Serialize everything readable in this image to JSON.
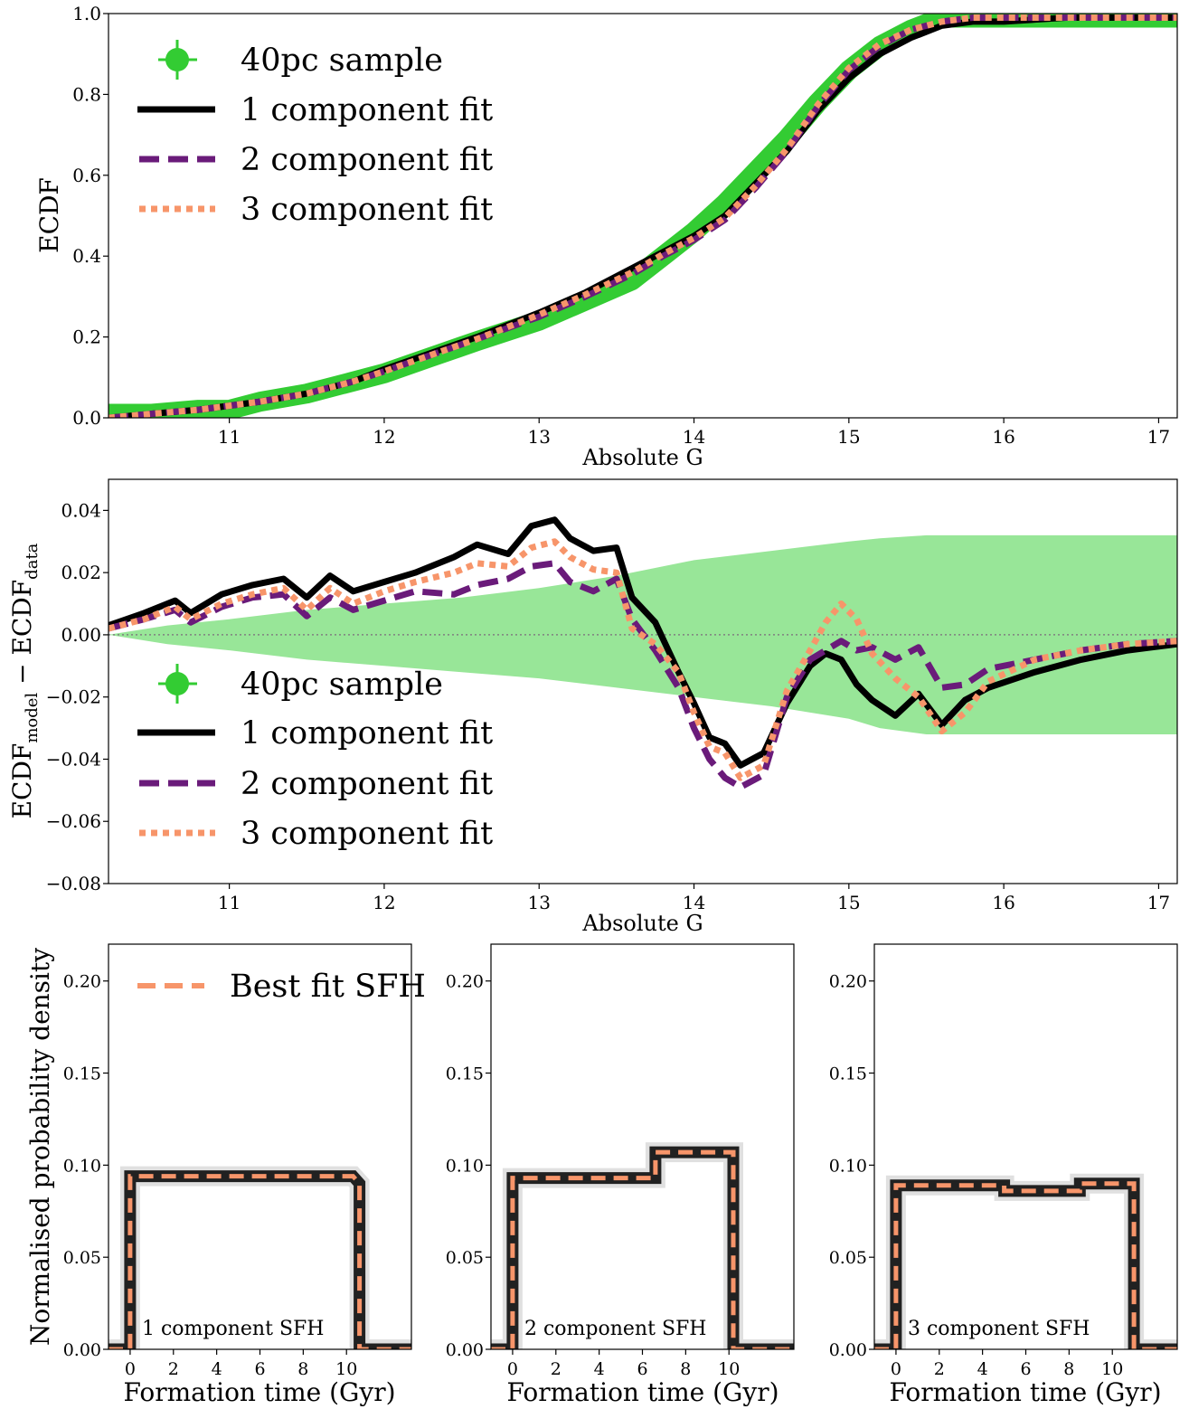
{
  "colors": {
    "sample": "#33cc33",
    "band": "#98e698",
    "fit1": "#000000",
    "fit2": "#6a1b7a",
    "fit3": "#f7956a",
    "zero": "#808080"
  },
  "legend": {
    "sample": "40pc sample",
    "fit1": "1 component fit",
    "fit2": "2 component fit",
    "fit3": "3 component fit",
    "bestfit": "Best fit SFH"
  },
  "chart_data": [
    {
      "id": "ecdf",
      "type": "line",
      "xlabel": "Absolute G",
      "ylabel": "ECDF",
      "xlim": [
        10.22,
        17.12
      ],
      "ylim": [
        0.0,
        1.0
      ],
      "xticks": [
        11,
        12,
        13,
        14,
        15,
        16,
        17
      ],
      "yticks": [
        0.0,
        0.2,
        0.4,
        0.6,
        0.8,
        1.0
      ],
      "ytick_labels": [
        "0.0",
        "0.2",
        "0.4",
        "0.6",
        "0.8",
        "1.0"
      ],
      "legend_position": "upper-left",
      "series": [
        {
          "key": "sample",
          "style": "errorbar-markers",
          "x": [
            10.22,
            10.5,
            10.8,
            11.0,
            11.2,
            11.5,
            11.8,
            12.0,
            12.3,
            12.6,
            13.0,
            13.3,
            13.6,
            13.8,
            14.0,
            14.2,
            14.4,
            14.6,
            14.8,
            15.0,
            15.2,
            15.4,
            15.6,
            15.8,
            16.0,
            16.4,
            16.8,
            17.12
          ],
          "y": [
            0.01,
            0.01,
            0.02,
            0.02,
            0.04,
            0.06,
            0.09,
            0.11,
            0.15,
            0.19,
            0.24,
            0.29,
            0.34,
            0.4,
            0.46,
            0.53,
            0.61,
            0.69,
            0.78,
            0.86,
            0.92,
            0.96,
            0.99,
            0.99,
            0.99,
            0.99,
            0.99,
            0.99
          ]
        },
        {
          "key": "fit1",
          "style": "solid",
          "x": [
            10.22,
            10.5,
            10.8,
            11.0,
            11.2,
            11.5,
            11.8,
            12.0,
            12.3,
            12.6,
            13.0,
            13.3,
            13.6,
            13.8,
            14.0,
            14.2,
            14.4,
            14.6,
            14.8,
            15.0,
            15.2,
            15.4,
            15.6,
            15.8,
            16.0,
            16.4,
            16.8,
            17.12
          ],
          "y": [
            0.0,
            0.01,
            0.02,
            0.03,
            0.04,
            0.06,
            0.09,
            0.12,
            0.16,
            0.2,
            0.26,
            0.31,
            0.37,
            0.41,
            0.45,
            0.5,
            0.58,
            0.66,
            0.76,
            0.84,
            0.9,
            0.94,
            0.97,
            0.98,
            0.98,
            0.99,
            0.99,
            0.99
          ]
        },
        {
          "key": "fit2",
          "style": "dashed",
          "x": [
            10.22,
            10.5,
            10.8,
            11.0,
            11.2,
            11.5,
            11.8,
            12.0,
            12.3,
            12.6,
            13.0,
            13.3,
            13.6,
            13.8,
            14.0,
            14.2,
            14.4,
            14.6,
            14.8,
            15.0,
            15.2,
            15.4,
            15.6,
            15.8,
            16.0,
            16.4,
            16.8,
            17.12
          ],
          "y": [
            0.0,
            0.01,
            0.02,
            0.03,
            0.04,
            0.06,
            0.09,
            0.115,
            0.155,
            0.195,
            0.25,
            0.3,
            0.355,
            0.4,
            0.44,
            0.49,
            0.57,
            0.66,
            0.77,
            0.86,
            0.92,
            0.96,
            0.98,
            0.99,
            0.99,
            0.99,
            0.99,
            0.99
          ]
        },
        {
          "key": "fit3",
          "style": "dotted",
          "x": [
            10.22,
            10.5,
            10.8,
            11.0,
            11.2,
            11.5,
            11.8,
            12.0,
            12.3,
            12.6,
            13.0,
            13.3,
            13.6,
            13.8,
            14.0,
            14.2,
            14.4,
            14.6,
            14.8,
            15.0,
            15.2,
            15.4,
            15.6,
            15.8,
            16.0,
            16.4,
            16.8,
            17.12
          ],
          "y": [
            0.0,
            0.01,
            0.02,
            0.03,
            0.04,
            0.06,
            0.09,
            0.115,
            0.155,
            0.195,
            0.255,
            0.305,
            0.36,
            0.405,
            0.445,
            0.495,
            0.575,
            0.665,
            0.775,
            0.865,
            0.925,
            0.96,
            0.98,
            0.99,
            0.99,
            0.99,
            0.99,
            0.99
          ]
        }
      ]
    },
    {
      "id": "residuals",
      "type": "line",
      "xlabel": "Absolute G",
      "ylabel": "ECDF_model − ECDF_data",
      "ylabel_main": "ECDF",
      "ylabel_sub1": "model",
      "ylabel_mid": " − ECDF",
      "ylabel_sub2": "data",
      "xlim": [
        10.22,
        17.12
      ],
      "ylim": [
        -0.08,
        0.05
      ],
      "xticks": [
        11,
        12,
        13,
        14,
        15,
        16,
        17
      ],
      "yticks": [
        0.04,
        0.02,
        0.0,
        -0.02,
        -0.04,
        -0.06,
        -0.08
      ],
      "ytick_labels": [
        "0.04",
        "0.02",
        "0.00",
        "−0.02",
        "−0.04",
        "−0.06",
        "−0.08"
      ],
      "legend_position": "lower-left",
      "band": {
        "x": [
          10.22,
          10.6,
          11.0,
          11.5,
          12.0,
          12.5,
          13.0,
          13.5,
          14.0,
          14.5,
          15.0,
          15.2,
          15.5,
          16.0,
          16.5,
          17.12
        ],
        "upper": [
          0.0,
          0.003,
          0.005,
          0.008,
          0.01,
          0.012,
          0.015,
          0.019,
          0.024,
          0.027,
          0.03,
          0.031,
          0.032,
          0.032,
          0.032,
          0.032
        ],
        "lower": [
          0.0,
          -0.003,
          -0.005,
          -0.008,
          -0.01,
          -0.012,
          -0.014,
          -0.017,
          -0.02,
          -0.023,
          -0.027,
          -0.03,
          -0.032,
          -0.032,
          -0.032,
          -0.032
        ]
      },
      "series": [
        {
          "key": "fit1",
          "style": "solid",
          "x": [
            10.22,
            10.45,
            10.65,
            10.75,
            10.95,
            11.15,
            11.35,
            11.5,
            11.65,
            11.8,
            12.0,
            12.2,
            12.45,
            12.6,
            12.8,
            12.95,
            13.1,
            13.2,
            13.35,
            13.5,
            13.6,
            13.75,
            13.9,
            14.0,
            14.1,
            14.2,
            14.3,
            14.45,
            14.6,
            14.75,
            14.85,
            14.95,
            15.05,
            15.15,
            15.3,
            15.45,
            15.6,
            15.75,
            15.9,
            16.2,
            16.5,
            16.8,
            17.12
          ],
          "y": [
            0.003,
            0.007,
            0.011,
            0.007,
            0.013,
            0.016,
            0.018,
            0.012,
            0.019,
            0.014,
            0.017,
            0.02,
            0.025,
            0.029,
            0.026,
            0.035,
            0.037,
            0.031,
            0.027,
            0.028,
            0.012,
            0.004,
            -0.012,
            -0.022,
            -0.033,
            -0.035,
            -0.042,
            -0.038,
            -0.022,
            -0.01,
            -0.006,
            -0.008,
            -0.016,
            -0.021,
            -0.026,
            -0.019,
            -0.029,
            -0.021,
            -0.017,
            -0.012,
            -0.008,
            -0.005,
            -0.003
          ]
        },
        {
          "key": "fit2",
          "style": "dashed",
          "x": [
            10.22,
            10.45,
            10.65,
            10.75,
            10.95,
            11.15,
            11.35,
            11.5,
            11.65,
            11.8,
            12.0,
            12.2,
            12.45,
            12.6,
            12.8,
            12.95,
            13.1,
            13.2,
            13.35,
            13.5,
            13.6,
            13.75,
            13.9,
            14.0,
            14.1,
            14.2,
            14.3,
            14.45,
            14.6,
            14.75,
            14.85,
            14.95,
            15.05,
            15.15,
            15.3,
            15.45,
            15.6,
            15.75,
            15.9,
            16.2,
            16.5,
            16.8,
            17.12
          ],
          "y": [
            0.002,
            0.005,
            0.008,
            0.004,
            0.009,
            0.012,
            0.013,
            0.006,
            0.012,
            0.008,
            0.011,
            0.014,
            0.013,
            0.016,
            0.018,
            0.022,
            0.023,
            0.017,
            0.014,
            0.018,
            0.005,
            -0.005,
            -0.017,
            -0.03,
            -0.04,
            -0.046,
            -0.049,
            -0.045,
            -0.02,
            -0.008,
            -0.005,
            -0.002,
            -0.005,
            -0.004,
            -0.008,
            -0.004,
            -0.017,
            -0.016,
            -0.011,
            -0.008,
            -0.005,
            -0.003,
            -0.002
          ]
        },
        {
          "key": "fit3",
          "style": "dotted",
          "x": [
            10.22,
            10.45,
            10.65,
            10.75,
            10.95,
            11.15,
            11.35,
            11.5,
            11.65,
            11.8,
            12.0,
            12.2,
            12.45,
            12.6,
            12.8,
            12.95,
            13.1,
            13.2,
            13.35,
            13.5,
            13.6,
            13.75,
            13.9,
            14.0,
            14.1,
            14.2,
            14.3,
            14.45,
            14.6,
            14.75,
            14.85,
            14.95,
            15.05,
            15.15,
            15.3,
            15.45,
            15.6,
            15.75,
            15.9,
            16.2,
            16.5,
            16.8,
            17.12
          ],
          "y": [
            0.002,
            0.005,
            0.009,
            0.005,
            0.01,
            0.013,
            0.015,
            0.008,
            0.015,
            0.01,
            0.014,
            0.017,
            0.02,
            0.023,
            0.022,
            0.028,
            0.03,
            0.025,
            0.021,
            0.02,
            0.002,
            -0.003,
            -0.012,
            -0.025,
            -0.036,
            -0.038,
            -0.046,
            -0.042,
            -0.018,
            -0.005,
            0.004,
            0.01,
            0.005,
            -0.006,
            -0.014,
            -0.02,
            -0.031,
            -0.025,
            -0.015,
            -0.008,
            -0.005,
            -0.003,
            -0.002
          ]
        }
      ]
    },
    {
      "id": "sfh1",
      "type": "line",
      "xlabel": "Formation time (Gyr)",
      "ylabel": "Normalised probability density",
      "annotation": "1 component SFH",
      "xlim": [
        -1.0,
        13.0
      ],
      "ylim": [
        0.0,
        0.22
      ],
      "xticks": [
        0,
        2,
        4,
        6,
        8,
        10
      ],
      "yticks": [
        0.0,
        0.05,
        0.1,
        0.15,
        0.2
      ],
      "ytick_labels": [
        "0.00",
        "0.05",
        "0.10",
        "0.15",
        "0.20"
      ],
      "legend_position": "upper-left",
      "series": [
        {
          "key": "bestfit",
          "style": "dashed",
          "x": [
            -1.0,
            0.0,
            0.0,
            10.3,
            10.6,
            10.6,
            13.0
          ],
          "y": [
            0.0,
            0.0,
            0.094,
            0.094,
            0.09,
            0.0,
            0.0
          ]
        }
      ]
    },
    {
      "id": "sfh2",
      "type": "line",
      "xlabel": "Formation time (Gyr)",
      "annotation": "2 component SFH",
      "xlim": [
        -1.0,
        13.0
      ],
      "ylim": [
        0.0,
        0.22
      ],
      "xticks": [
        0,
        2,
        4,
        6,
        8,
        10
      ],
      "yticks": [
        0.0,
        0.05,
        0.1,
        0.15,
        0.2
      ],
      "ytick_labels": [
        "0.00",
        "0.05",
        "0.10",
        "0.15",
        "0.20"
      ],
      "series": [
        {
          "key": "bestfit",
          "style": "dashed",
          "x": [
            -1.0,
            0.0,
            0.0,
            6.6,
            6.6,
            10.2,
            10.2,
            13.0
          ],
          "y": [
            0.0,
            0.0,
            0.093,
            0.093,
            0.107,
            0.107,
            0.0,
            0.0
          ]
        }
      ]
    },
    {
      "id": "sfh3",
      "type": "line",
      "xlabel": "Formation time (Gyr)",
      "annotation": "3 component SFH",
      "xlim": [
        -1.0,
        13.0
      ],
      "ylim": [
        0.0,
        0.22
      ],
      "xticks": [
        0,
        2,
        4,
        6,
        8,
        10
      ],
      "yticks": [
        0.0,
        0.05,
        0.1,
        0.15,
        0.2
      ],
      "ytick_labels": [
        "0.00",
        "0.05",
        "0.10",
        "0.15",
        "0.20"
      ],
      "series": [
        {
          "key": "bestfit",
          "style": "dashed",
          "x": [
            -1.0,
            0.0,
            0.0,
            5.0,
            5.0,
            8.5,
            8.5,
            11.0,
            11.0,
            13.0
          ],
          "y": [
            0.0,
            0.0,
            0.089,
            0.089,
            0.086,
            0.086,
            0.09,
            0.09,
            0.0,
            0.0
          ]
        }
      ]
    }
  ]
}
